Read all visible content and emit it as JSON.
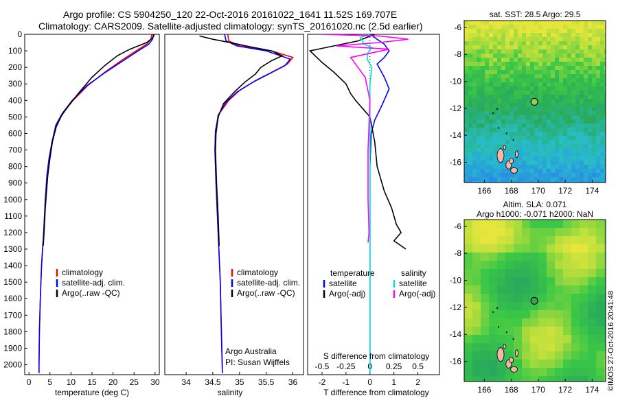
{
  "header": {
    "line1": "Argo profile: CS 5904250_120 22-Oct-2016 20161022_1641 11.52S 169.707E",
    "line2": "Climatology: CARS2009. Satellite-adjusted climatology: synTS_20161020.nc (2.5d earlier)"
  },
  "side_stamp": "©IMOS 27-Oct-2016 20:41:48",
  "credits": {
    "line1": "Argo Australia",
    "line2": "PI: Susan Wijffels"
  },
  "colors": {
    "climatology": "#ff0000",
    "satellite": "#0000ff",
    "argo": "#000000",
    "sat_salinity": "#00e0e0",
    "argo_salinity": "#ff00ff"
  },
  "chart_data": [
    {
      "type": "line",
      "name": "temperature",
      "xlabel": "temperature (deg C)",
      "xlim": [
        -1,
        31
      ],
      "ylim": [
        2060,
        0
      ],
      "xticks": [
        0,
        5,
        10,
        15,
        20,
        25,
        30
      ],
      "yticks": [
        0,
        100,
        200,
        300,
        400,
        500,
        600,
        700,
        800,
        900,
        1000,
        1100,
        1200,
        1300,
        1400,
        1500,
        1600,
        1700,
        1800,
        1900,
        2000
      ],
      "legend": {
        "placement": "bottom-right",
        "entries": [
          "climatology",
          "satellite-adj. clim.",
          "Argo(..raw -QC)"
        ]
      },
      "series": [
        {
          "name": "climatology",
          "color": "#ff0000",
          "points": [
            [
              29.2,
              0
            ],
            [
              29.0,
              30
            ],
            [
              28.0,
              60
            ],
            [
              25.5,
              100
            ],
            [
              22.5,
              150
            ],
            [
              18.0,
              230
            ],
            [
              14.0,
              310
            ],
            [
              10.5,
              400
            ],
            [
              8.0,
              480
            ],
            [
              6.5,
              550
            ],
            [
              5.5,
              650
            ],
            [
              4.8,
              750
            ],
            [
              4.3,
              850
            ],
            [
              3.9,
              1000
            ],
            [
              3.5,
              1200
            ],
            [
              3.0,
              1400
            ],
            [
              2.7,
              1600
            ],
            [
              2.5,
              1800
            ],
            [
              2.4,
              2000
            ],
            [
              2.4,
              2050
            ]
          ]
        },
        {
          "name": "satellite-adj. clim.",
          "color": "#0000ff",
          "points": [
            [
              29.6,
              0
            ],
            [
              29.4,
              30
            ],
            [
              28.5,
              60
            ],
            [
              26.0,
              100
            ],
            [
              23.0,
              150
            ],
            [
              18.2,
              230
            ],
            [
              13.8,
              310
            ],
            [
              10.3,
              400
            ],
            [
              7.9,
              480
            ],
            [
              6.4,
              550
            ],
            [
              5.5,
              650
            ],
            [
              4.8,
              750
            ],
            [
              4.3,
              850
            ],
            [
              3.9,
              1000
            ],
            [
              3.5,
              1200
            ],
            [
              3.0,
              1400
            ],
            [
              2.7,
              1600
            ],
            [
              2.5,
              1800
            ],
            [
              2.4,
              2000
            ],
            [
              2.4,
              2050
            ]
          ]
        },
        {
          "name": "Argo(..raw -QC)",
          "color": "#000000",
          "points": [
            [
              29.8,
              0
            ],
            [
              29.5,
              20
            ],
            [
              28.0,
              50
            ],
            [
              24.0,
              90
            ],
            [
              21.0,
              130
            ],
            [
              18.0,
              190
            ],
            [
              15.0,
              260
            ],
            [
              12.0,
              350
            ],
            [
              9.5,
              430
            ],
            [
              7.8,
              490
            ],
            [
              6.5,
              560
            ],
            [
              5.6,
              650
            ],
            [
              5.0,
              750
            ],
            [
              4.5,
              850
            ],
            [
              4.2,
              950
            ],
            [
              3.9,
              1050
            ],
            [
              3.6,
              1200
            ],
            [
              3.4,
              1280
            ]
          ]
        }
      ]
    },
    {
      "type": "line",
      "name": "salinity",
      "xlabel": "salinity",
      "xlim": [
        33.6,
        36.2
      ],
      "ylim": [
        2060,
        0
      ],
      "xticks": [
        34,
        34.5,
        35,
        35.5,
        36
      ],
      "legend": {
        "placement": "bottom-right",
        "entries": [
          "climatology",
          "satellite-adj. clim.",
          "Argo(..raw -QC)"
        ]
      },
      "series": [
        {
          "name": "climatology",
          "color": "#ff0000",
          "points": [
            [
              34.78,
              0
            ],
            [
              34.8,
              40
            ],
            [
              35.0,
              70
            ],
            [
              35.6,
              100
            ],
            [
              36.0,
              140
            ],
            [
              35.9,
              180
            ],
            [
              35.6,
              230
            ],
            [
              35.3,
              280
            ],
            [
              35.0,
              340
            ],
            [
              34.8,
              400
            ],
            [
              34.62,
              480
            ],
            [
              34.55,
              580
            ],
            [
              34.54,
              700
            ],
            [
              34.56,
              900
            ],
            [
              34.6,
              1200
            ],
            [
              34.64,
              1500
            ],
            [
              34.66,
              1800
            ],
            [
              34.68,
              2050
            ]
          ]
        },
        {
          "name": "satellite-adj. clim.",
          "color": "#0000ff",
          "points": [
            [
              34.72,
              0
            ],
            [
              34.75,
              40
            ],
            [
              34.95,
              70
            ],
            [
              35.5,
              100
            ],
            [
              35.95,
              150
            ],
            [
              35.85,
              190
            ],
            [
              35.55,
              240
            ],
            [
              35.25,
              290
            ],
            [
              34.95,
              350
            ],
            [
              34.75,
              410
            ],
            [
              34.6,
              490
            ],
            [
              34.55,
              590
            ],
            [
              34.54,
              700
            ],
            [
              34.56,
              900
            ],
            [
              34.6,
              1200
            ],
            [
              34.64,
              1500
            ],
            [
              34.66,
              1800
            ],
            [
              34.68,
              2050
            ]
          ]
        },
        {
          "name": "Argo(..raw -QC)",
          "color": "#000000",
          "points": [
            [
              34.25,
              10
            ],
            [
              34.5,
              30
            ],
            [
              34.9,
              55
            ],
            [
              35.2,
              75
            ],
            [
              35.6,
              100
            ],
            [
              35.8,
              130
            ],
            [
              35.6,
              160
            ],
            [
              35.4,
              200
            ],
            [
              35.3,
              240
            ],
            [
              35.1,
              290
            ],
            [
              34.9,
              350
            ],
            [
              34.7,
              420
            ],
            [
              34.6,
              500
            ],
            [
              34.56,
              600
            ],
            [
              34.55,
              700
            ],
            [
              34.57,
              900
            ],
            [
              34.6,
              1100
            ],
            [
              34.62,
              1280
            ]
          ]
        }
      ]
    },
    {
      "type": "line",
      "name": "difference",
      "xlabel": "T difference from climatology",
      "xlabel2": "S difference from climatology",
      "xlim": [
        -2.6,
        2.9
      ],
      "ylim": [
        2060,
        0
      ],
      "xticks": [
        -2,
        -1,
        0,
        1,
        2
      ],
      "xticks2": [
        -0.5,
        -0.25,
        0,
        0.25,
        0.5
      ],
      "legend": {
        "placement": "bottom",
        "temperature_title": "temperature",
        "salinity_title": "salinity",
        "temperature_entries": [
          "satellite",
          "Argo(-adj)"
        ],
        "salinity_entries": [
          "satellite",
          "Argo(-adj)"
        ]
      },
      "series": [
        {
          "name": "temperature satellite",
          "color": "#0000ff",
          "points": [
            [
              0,
              0
            ],
            [
              0.3,
              30
            ],
            [
              0.6,
              60
            ],
            [
              0.8,
              100
            ],
            [
              0.6,
              140
            ],
            [
              0.3,
              180
            ],
            [
              0.6,
              260
            ],
            [
              0.8,
              330
            ],
            [
              0.5,
              430
            ],
            [
              0.2,
              520
            ],
            [
              0.05,
              600
            ],
            [
              0,
              800
            ],
            [
              0,
              1200
            ],
            [
              0,
              2050
            ]
          ]
        },
        {
          "name": "temperature Argo(-adj)",
          "color": "#000000",
          "points": [
            [
              0.2,
              0
            ],
            [
              -0.5,
              40
            ],
            [
              -1.5,
              70
            ],
            [
              -2.5,
              100
            ],
            [
              -2.0,
              170
            ],
            [
              -1.5,
              230
            ],
            [
              -1.0,
              300
            ],
            [
              -0.8,
              360
            ],
            [
              -0.6,
              400
            ],
            [
              -0.3,
              450
            ],
            [
              0,
              500
            ],
            [
              0.2,
              650
            ],
            [
              0.3,
              800
            ],
            [
              0.6,
              950
            ],
            [
              0.9,
              1050
            ],
            [
              1.1,
              1150
            ],
            [
              1.3,
              1200
            ],
            [
              1.0,
              1250
            ],
            [
              1.5,
              1300
            ]
          ]
        },
        {
          "name": "salinity satellite",
          "color": "#00e0e0",
          "points": [
            [
              0,
              0
            ],
            [
              -0.1,
              20
            ],
            [
              -0.06,
              60
            ],
            [
              0.02,
              80
            ],
            [
              -0.02,
              110
            ],
            [
              -0.03,
              150
            ],
            [
              0.02,
              200
            ],
            [
              0,
              300
            ],
            [
              0,
              500
            ],
            [
              0,
              2050
            ]
          ]
        },
        {
          "name": "salinity Argo(-adj)",
          "color": "#ff00ff",
          "points": [
            [
              -0.5,
              0
            ],
            [
              0.1,
              10
            ],
            [
              0.4,
              30
            ],
            [
              0.1,
              50
            ],
            [
              -0.35,
              70
            ],
            [
              0.2,
              90
            ],
            [
              -0.2,
              140
            ],
            [
              -0.15,
              180
            ],
            [
              -0.05,
              260
            ],
            [
              0,
              400
            ],
            [
              -0.02,
              700
            ],
            [
              -0.02,
              1000
            ],
            [
              -0.01,
              1200
            ],
            [
              -0.02,
              1260
            ]
          ]
        }
      ]
    },
    {
      "type": "heatmap",
      "name": "sst-map",
      "title": "sat. SST: 28.5  Argo: 29.5",
      "xlim": [
        164.5,
        175
      ],
      "ylim": [
        -17.5,
        -5.5
      ],
      "xticks": [
        166,
        168,
        170,
        172,
        174
      ],
      "yticks": [
        -6,
        -8,
        -10,
        -12,
        -14,
        -16
      ],
      "argo_position": [
        169.707,
        -11.52
      ]
    },
    {
      "type": "heatmap",
      "name": "sla-map",
      "title": "Altim. SLA: 0.071",
      "subtitle": "Argo h1000: -0.071  h2000: NaN",
      "xlim": [
        164.5,
        175
      ],
      "ylim": [
        -17.5,
        -5.5
      ],
      "xticks": [
        166,
        168,
        170,
        172,
        174
      ],
      "yticks": [
        -6,
        -8,
        -10,
        -12,
        -14,
        -16
      ],
      "argo_position": [
        169.707,
        -11.52
      ]
    }
  ]
}
